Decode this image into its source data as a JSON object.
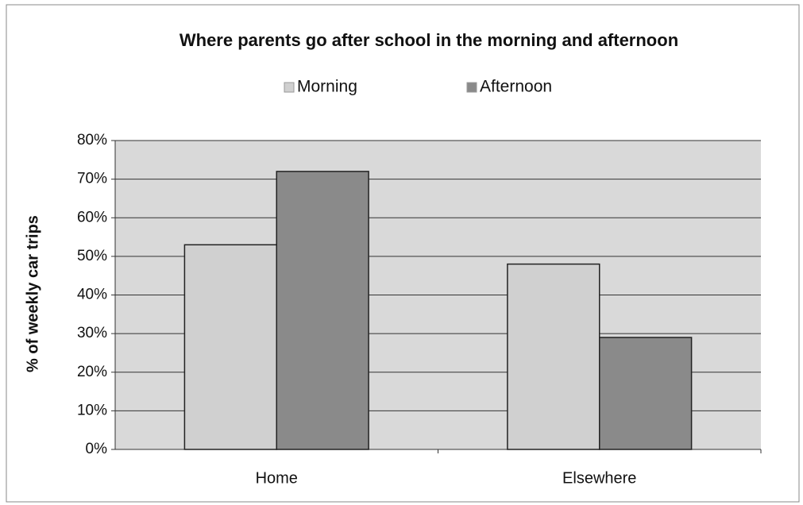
{
  "chart_data": {
    "type": "bar",
    "title": "Where parents go after school in the morning and afternoon",
    "y_label": "% of weekly car trips",
    "categories": [
      "Home",
      "Elsewhere"
    ],
    "series": [
      {
        "name": "Morning",
        "color": "#d0d0d0",
        "values": [
          53,
          48
        ]
      },
      {
        "name": "Afternoon",
        "color": "#8a8a8a",
        "values": [
          72,
          29
        ]
      }
    ],
    "ylim": [
      0,
      80
    ],
    "yticks": [
      {
        "value": 0,
        "label": "0%"
      },
      {
        "value": 10,
        "label": "10%"
      },
      {
        "value": 20,
        "label": "20%"
      },
      {
        "value": 30,
        "label": "30%"
      },
      {
        "value": 40,
        "label": "40%"
      },
      {
        "value": 50,
        "label": "50%"
      },
      {
        "value": 60,
        "label": "60%"
      },
      {
        "value": 70,
        "label": "70%"
      },
      {
        "value": 80,
        "label": "80%"
      }
    ],
    "grid": true,
    "legend": "top"
  }
}
